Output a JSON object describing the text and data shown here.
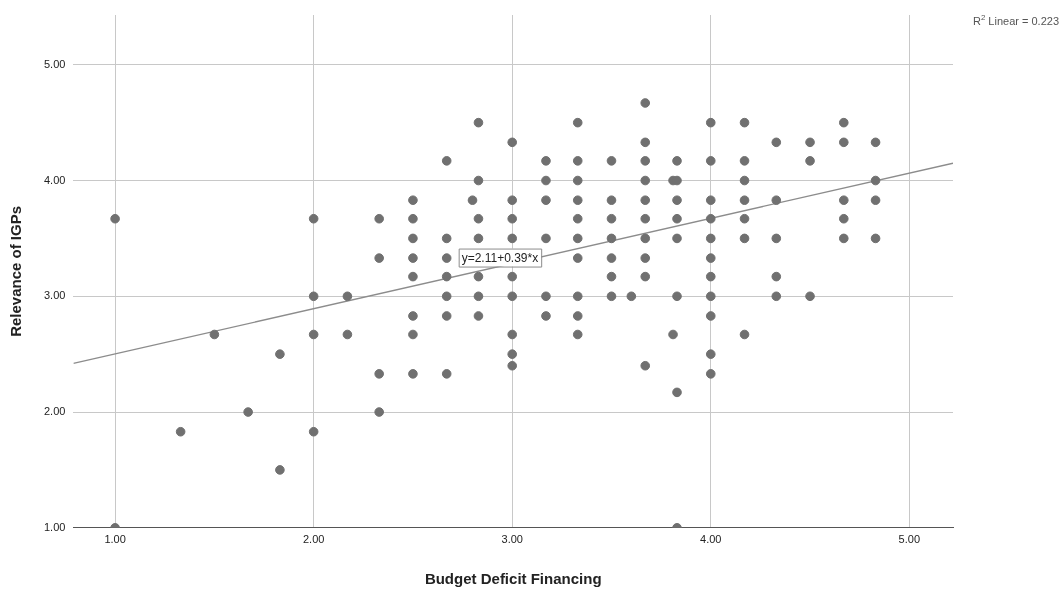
{
  "chart_data": {
    "type": "scatter",
    "xlabel": "Budget Deficit Financing",
    "ylabel": "Relevance of IGPs",
    "xlim": [
      0.79,
      5.22
    ],
    "ylim": [
      1,
      5.43
    ],
    "xticks": [
      {
        "value": 1,
        "label": "1.00"
      },
      {
        "value": 2,
        "label": "2.00"
      },
      {
        "value": 3,
        "label": "3.00"
      },
      {
        "value": 4,
        "label": "4.00"
      },
      {
        "value": 5,
        "label": "5.00"
      }
    ],
    "yticks": [
      {
        "value": 1,
        "label": "1.00"
      },
      {
        "value": 2,
        "label": "2.00"
      },
      {
        "value": 3,
        "label": "3.00"
      },
      {
        "value": 4,
        "label": "4.00"
      },
      {
        "value": 5,
        "label": "5.00"
      }
    ],
    "grid": true,
    "legend": false,
    "series": [
      {
        "color": "#707070",
        "marker": "circle",
        "x": [
          1,
          1,
          1.33,
          1.5,
          1.67,
          1.83,
          1.83,
          2,
          2,
          2,
          2,
          2.17,
          2.17,
          2.33,
          2.33,
          2.33,
          2.33,
          2.5,
          2.5,
          2.5,
          2.5,
          2.5,
          2.5,
          2.5,
          2.5,
          2.67,
          2.67,
          2.67,
          2.67,
          2.67,
          2.67,
          2.67,
          2.8,
          2.83,
          2.83,
          2.83,
          2.83,
          2.83,
          2.83,
          2.83,
          3,
          3,
          3,
          3,
          3,
          3,
          3,
          3,
          3,
          3.17,
          3.17,
          3.17,
          3.17,
          3.17,
          3.17,
          3.33,
          3.33,
          3.33,
          3.33,
          3.33,
          3.33,
          3.33,
          3.33,
          3.33,
          3.33,
          3.5,
          3.5,
          3.5,
          3.5,
          3.5,
          3.5,
          3.5,
          3.6,
          3.67,
          3.67,
          3.67,
          3.67,
          3.67,
          3.67,
          3.67,
          3.67,
          3.67,
          3.67,
          3.81,
          3.81,
          3.83,
          3.83,
          3.83,
          3.83,
          3.83,
          3.83,
          3.83,
          3.83,
          4,
          4,
          4,
          4,
          4,
          4,
          4,
          4,
          4,
          4,
          4,
          4.17,
          4.17,
          4.17,
          4.17,
          4.17,
          4.17,
          4.17,
          4.33,
          4.33,
          4.33,
          4.33,
          4.33,
          4.5,
          4.5,
          4.5,
          4.67,
          4.67,
          4.67,
          4.67,
          4.67,
          4.83,
          4.83,
          4.83,
          4.83
        ],
        "values": [
          3.67,
          1,
          1.83,
          2.67,
          2,
          2.5,
          1.5,
          3.67,
          3,
          2.67,
          1.83,
          3,
          2.67,
          3.67,
          3.33,
          2.33,
          2,
          3.83,
          3.67,
          3.5,
          3.33,
          3.17,
          2.83,
          2.67,
          2.33,
          4.17,
          3.5,
          3.33,
          3.17,
          3,
          2.83,
          2.33,
          3.83,
          4.5,
          4,
          3.67,
          3.5,
          3.17,
          3,
          2.83,
          4.33,
          3.83,
          3.67,
          3.5,
          3.17,
          3,
          2.67,
          2.5,
          2.4,
          4.17,
          4,
          3.83,
          3.5,
          3,
          2.83,
          4.5,
          4.17,
          4,
          3.83,
          3.67,
          3.5,
          3.33,
          3,
          2.83,
          2.67,
          4.17,
          3.83,
          3.67,
          3.5,
          3.33,
          3.17,
          3,
          3,
          4.67,
          4.33,
          4.17,
          4,
          3.83,
          3.67,
          3.5,
          3.33,
          3.17,
          2.4,
          4,
          2.67,
          4.17,
          4,
          3.83,
          3.67,
          3.5,
          3,
          2.17,
          1,
          4.5,
          4.17,
          3.83,
          3.67,
          3.5,
          3.33,
          3.17,
          3,
          2.83,
          2.5,
          2.33,
          4.5,
          4.17,
          4,
          3.83,
          3.67,
          3.5,
          2.67,
          4.33,
          3.83,
          3.5,
          3.17,
          3,
          4.33,
          4.17,
          3,
          4.5,
          4.33,
          3.83,
          3.67,
          3.5,
          4.33,
          4,
          3.83,
          3.5
        ]
      },
      {
        "type": "line",
        "color": "#8c8c8c",
        "marker": "none",
        "x": [
          0.79,
          5.22
        ],
        "values": [
          2.42,
          4.15
        ]
      }
    ],
    "annotations": [
      "y=2.11+0.39*x",
      "R$^{2}$ Linear = 0.223"
    ]
  }
}
